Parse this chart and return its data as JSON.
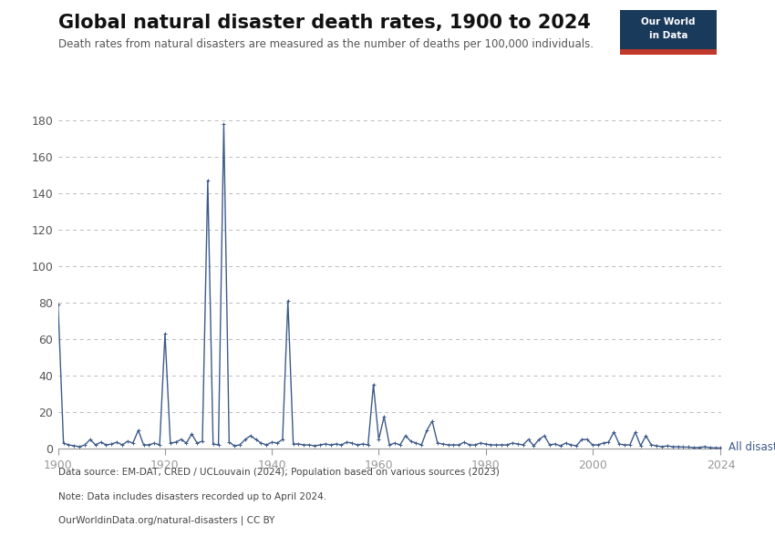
{
  "title": "Global natural disaster death rates, 1900 to 2024",
  "subtitle": "Death rates from natural disasters are measured as the number of deaths per 100,000 individuals.",
  "line_color": "#3d5a8a",
  "line_label": "All disasters",
  "background_color": "#ffffff",
  "grid_color": "#bbbbbb",
  "ylim": [
    0,
    180
  ],
  "yticks": [
    0,
    20,
    40,
    60,
    80,
    100,
    120,
    140,
    160,
    180
  ],
  "xlabel_years": [
    1900,
    1920,
    1940,
    1960,
    1980,
    2000,
    2024
  ],
  "footer_datasource": "Data source: EM-DAT, CRED / UCLouvain (2024); Population based on various sources (2023)",
  "footer_note": "Note: Data includes disasters recorded up to April 2024.",
  "footer_url": "OurWorldinData.org/natural-disasters | CC BY",
  "owid_box_color": "#1a3a5c",
  "owid_box_red": "#c0392b",
  "years": [
    1900,
    1901,
    1902,
    1903,
    1904,
    1905,
    1906,
    1907,
    1908,
    1909,
    1910,
    1911,
    1912,
    1913,
    1914,
    1915,
    1916,
    1917,
    1918,
    1919,
    1920,
    1921,
    1922,
    1923,
    1924,
    1925,
    1926,
    1927,
    1928,
    1929,
    1930,
    1931,
    1932,
    1933,
    1934,
    1935,
    1936,
    1937,
    1938,
    1939,
    1940,
    1941,
    1942,
    1943,
    1944,
    1945,
    1946,
    1947,
    1948,
    1949,
    1950,
    1951,
    1952,
    1953,
    1954,
    1955,
    1956,
    1957,
    1958,
    1959,
    1960,
    1961,
    1962,
    1963,
    1964,
    1965,
    1966,
    1967,
    1968,
    1969,
    1970,
    1971,
    1972,
    1973,
    1974,
    1975,
    1976,
    1977,
    1978,
    1979,
    1980,
    1981,
    1982,
    1983,
    1984,
    1985,
    1986,
    1987,
    1988,
    1989,
    1990,
    1991,
    1992,
    1993,
    1994,
    1995,
    1996,
    1997,
    1998,
    1999,
    2000,
    2001,
    2002,
    2003,
    2004,
    2005,
    2006,
    2007,
    2008,
    2009,
    2010,
    2011,
    2012,
    2013,
    2014,
    2015,
    2016,
    2017,
    2018,
    2019,
    2020,
    2021,
    2022,
    2023,
    2024
  ],
  "values": [
    79.0,
    3.0,
    2.0,
    1.5,
    1.0,
    2.0,
    5.0,
    2.0,
    3.5,
    2.0,
    2.5,
    3.5,
    2.0,
    4.0,
    3.0,
    10.0,
    2.0,
    2.0,
    3.0,
    2.0,
    63.0,
    3.0,
    3.5,
    5.0,
    3.0,
    8.0,
    3.0,
    4.0,
    147.0,
    2.5,
    2.0,
    178.0,
    3.5,
    1.5,
    2.0,
    5.0,
    7.0,
    5.0,
    3.0,
    2.0,
    3.5,
    3.0,
    5.0,
    81.0,
    2.5,
    2.5,
    2.0,
    2.0,
    1.5,
    2.0,
    2.5,
    2.0,
    2.5,
    2.0,
    3.5,
    3.0,
    2.0,
    2.5,
    2.0,
    35.0,
    5.0,
    17.5,
    2.0,
    3.0,
    2.0,
    7.0,
    4.0,
    3.0,
    2.0,
    10.0,
    15.0,
    3.0,
    2.5,
    2.0,
    2.0,
    2.0,
    3.5,
    2.0,
    2.0,
    3.0,
    2.5,
    2.0,
    2.0,
    2.0,
    2.0,
    3.0,
    2.5,
    2.0,
    5.0,
    1.5,
    5.0,
    7.0,
    2.0,
    2.5,
    1.5,
    3.0,
    2.0,
    1.5,
    5.0,
    5.0,
    2.0,
    2.0,
    3.0,
    3.5,
    9.0,
    2.5,
    2.0,
    2.0,
    9.0,
    1.5,
    7.0,
    2.0,
    1.5,
    1.0,
    1.5,
    1.0,
    1.0,
    0.8,
    0.8,
    0.5,
    0.6,
    1.0,
    0.5,
    0.4,
    0.3
  ]
}
